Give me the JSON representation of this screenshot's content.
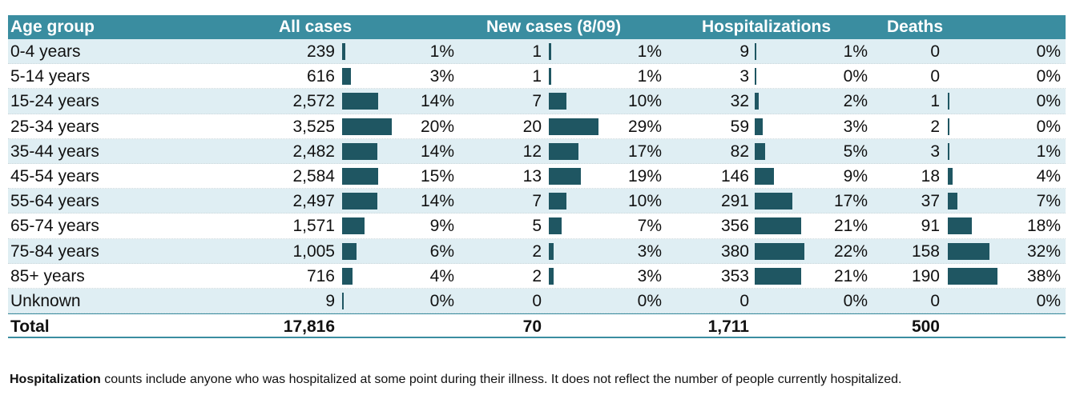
{
  "chart_data": {
    "type": "table",
    "columns": [
      "Age group",
      "All cases",
      "New cases (8/09)",
      "Hospitalizations",
      "Deaths"
    ],
    "rows": [
      {
        "label": "0-4 years",
        "all": 239,
        "all_pct": "1%",
        "new": 1,
        "new_pct": "1%",
        "hosp": 9,
        "hosp_pct": "1%",
        "deaths": 0,
        "deaths_pct": "0%"
      },
      {
        "label": "5-14 years",
        "all": 616,
        "all_pct": "3%",
        "new": 1,
        "new_pct": "1%",
        "hosp": 3,
        "hosp_pct": "0%",
        "deaths": 0,
        "deaths_pct": "0%"
      },
      {
        "label": "15-24 years",
        "all": 2572,
        "all_pct": "14%",
        "new": 7,
        "new_pct": "10%",
        "hosp": 32,
        "hosp_pct": "2%",
        "deaths": 1,
        "deaths_pct": "0%"
      },
      {
        "label": "25-34 years",
        "all": 3525,
        "all_pct": "20%",
        "new": 20,
        "new_pct": "29%",
        "hosp": 59,
        "hosp_pct": "3%",
        "deaths": 2,
        "deaths_pct": "0%"
      },
      {
        "label": "35-44 years",
        "all": 2482,
        "all_pct": "14%",
        "new": 12,
        "new_pct": "17%",
        "hosp": 82,
        "hosp_pct": "5%",
        "deaths": 3,
        "deaths_pct": "1%"
      },
      {
        "label": "45-54 years",
        "all": 2584,
        "all_pct": "15%",
        "new": 13,
        "new_pct": "19%",
        "hosp": 146,
        "hosp_pct": "9%",
        "deaths": 18,
        "deaths_pct": "4%"
      },
      {
        "label": "55-64 years",
        "all": 2497,
        "all_pct": "14%",
        "new": 7,
        "new_pct": "10%",
        "hosp": 291,
        "hosp_pct": "17%",
        "deaths": 37,
        "deaths_pct": "7%"
      },
      {
        "label": "65-74 years",
        "all": 1571,
        "all_pct": "9%",
        "new": 5,
        "new_pct": "7%",
        "hosp": 356,
        "hosp_pct": "21%",
        "deaths": 91,
        "deaths_pct": "18%"
      },
      {
        "label": "75-84 years",
        "all": 1005,
        "all_pct": "6%",
        "new": 2,
        "new_pct": "3%",
        "hosp": 380,
        "hosp_pct": "22%",
        "deaths": 158,
        "deaths_pct": "32%"
      },
      {
        "label": "85+ years",
        "all": 716,
        "all_pct": "4%",
        "new": 2,
        "new_pct": "3%",
        "hosp": 353,
        "hosp_pct": "21%",
        "deaths": 190,
        "deaths_pct": "38%"
      },
      {
        "label": "Unknown",
        "all": 9,
        "all_pct": "0%",
        "new": 0,
        "new_pct": "0%",
        "hosp": 0,
        "hosp_pct": "0%",
        "deaths": 0,
        "deaths_pct": "0%"
      }
    ],
    "total": {
      "label": "Total",
      "all": "17,816",
      "new": "70",
      "hosp": "1,711",
      "deaths": "500"
    }
  },
  "colors": {
    "header_bg": "#3a8da0",
    "row_shade": "#dfeef3",
    "bar": "#1f5662"
  },
  "footnote": {
    "bold": "Hospitalization",
    "text": " counts include anyone who was hospitalized at some point during their illness. It does not reflect the number of people currently hospitalized."
  }
}
